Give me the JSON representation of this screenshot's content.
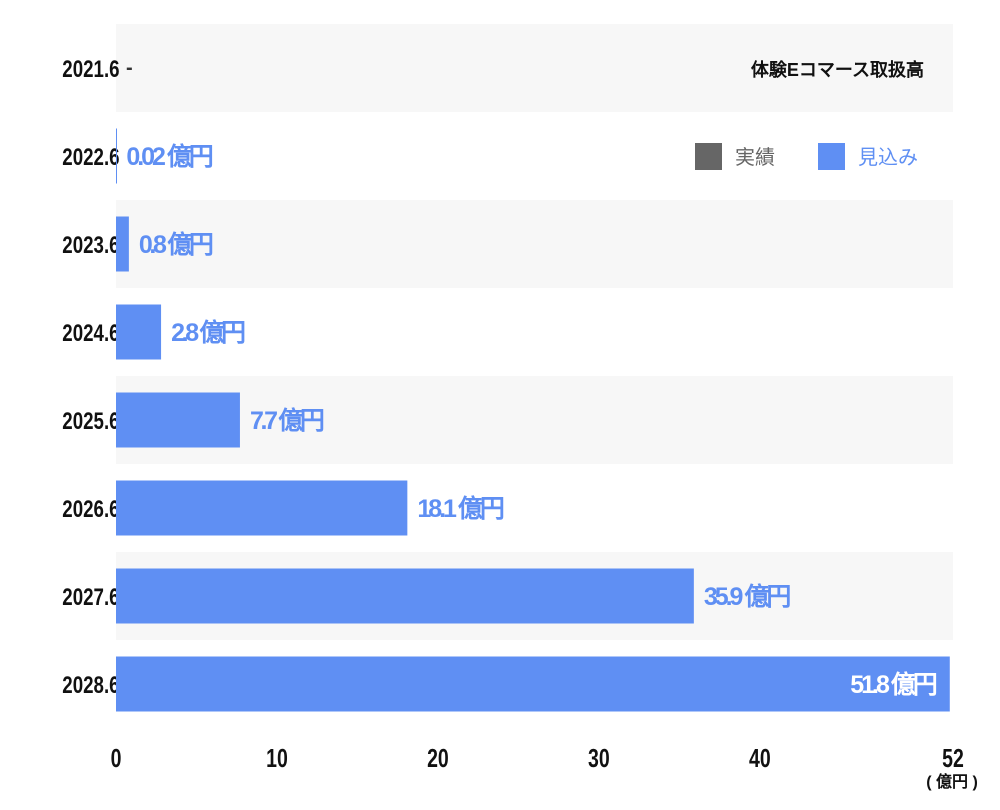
{
  "chart_data": {
    "type": "bar",
    "orientation": "horizontal",
    "title": "体験Eコマース取扱高",
    "categories": [
      "2021.6",
      "2022.6",
      "2023.6",
      "2024.6",
      "2025.6",
      "2026.6",
      "2027.6",
      "2028.6"
    ],
    "values": [
      null,
      0.02,
      0.8,
      2.8,
      7.7,
      18.1,
      35.9,
      51.8
    ],
    "data_labels": [
      "-",
      "0.02 億円",
      "0.8 億円",
      "2.8 億円",
      "7.7 億円",
      "18.1 億円",
      "35.9 億円",
      "51.8 億円"
    ],
    "xlim": [
      0,
      52
    ],
    "xticks": [
      0,
      10,
      20,
      30,
      40,
      52
    ],
    "xunit": "( 億円 )",
    "legend": {
      "placement": "top-right",
      "entries": [
        {
          "label": "実績",
          "color": "#666666"
        },
        {
          "label": "見込み",
          "color": "#5f8ff3"
        }
      ]
    },
    "bar_color": "#5f8ff3",
    "row_band_color": "#f7f7f7"
  }
}
